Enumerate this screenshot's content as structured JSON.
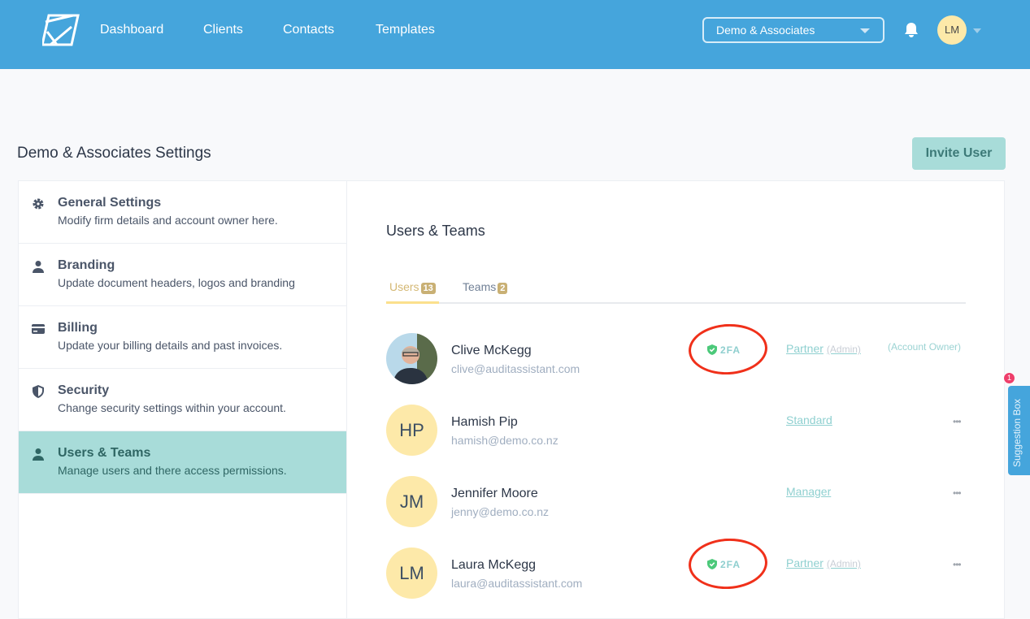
{
  "nav": {
    "items": [
      "Dashboard",
      "Clients",
      "Contacts",
      "Templates"
    ],
    "firm_select": "Demo & Associates",
    "user_initials": "LM"
  },
  "page": {
    "title": "Demo & Associates Settings",
    "invite_label": "Invite User"
  },
  "sidebar": {
    "items": [
      {
        "icon": "gear-icon",
        "title": "General Settings",
        "desc": "Modify firm details and account owner here."
      },
      {
        "icon": "user-icon",
        "title": "Branding",
        "desc": "Update document headers, logos and branding"
      },
      {
        "icon": "credit-card-icon",
        "title": "Billing",
        "desc": "Update your billing details and past invoices."
      },
      {
        "icon": "shield-icon",
        "title": "Security",
        "desc": "Change security settings within your account."
      },
      {
        "icon": "user-icon",
        "title": "Users & Teams",
        "desc": "Manage users and there access permissions.",
        "active": true
      }
    ]
  },
  "main": {
    "title": "Users & Teams",
    "tabs": [
      {
        "label": "Users",
        "count": "13",
        "active": true
      },
      {
        "label": "Teams",
        "count": "2"
      }
    ],
    "users": [
      {
        "initials": "",
        "name": "Clive McKegg",
        "email": "clive@auditassistant.com",
        "tfa": "2FA",
        "role": "Partner",
        "role_note": "(Admin)",
        "owner": "(Account Owner)",
        "more": ""
      },
      {
        "initials": "HP",
        "name": "Hamish Pip",
        "email": "hamish@demo.co.nz",
        "tfa": "",
        "role": "Standard",
        "role_note": "",
        "owner": "",
        "more": "•••"
      },
      {
        "initials": "JM",
        "name": "Jennifer Moore",
        "email": "jenny@demo.co.nz",
        "tfa": "",
        "role": "Manager",
        "role_note": "",
        "owner": "",
        "more": "•••"
      },
      {
        "initials": "LM",
        "name": "Laura McKegg",
        "email": "laura@auditassistant.com",
        "tfa": "2FA",
        "role": "Partner",
        "role_note": "(Admin)",
        "owner": "",
        "more": "•••"
      }
    ]
  },
  "suggestion": {
    "label": "Suggestion Box",
    "count": "1"
  },
  "colors": {
    "header": "#45a5dc",
    "accent": "#a8dcd9",
    "tab_active": "#d4b874",
    "highlight_ring": "#f0301a"
  }
}
